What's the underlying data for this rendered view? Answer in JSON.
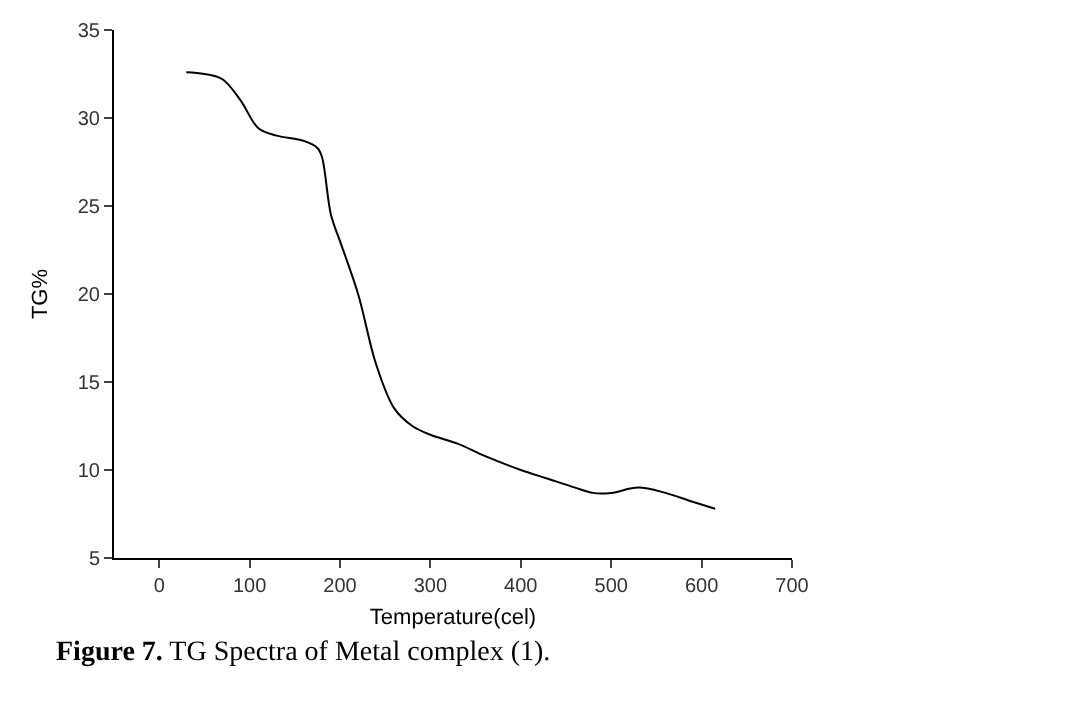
{
  "chart_data": {
    "type": "line",
    "xlabel": "Temperature(cel)",
    "ylabel": "TG%",
    "annotations": [
      "Figure 7. TG Spectra of Metal complex (1)."
    ],
    "x": [
      30,
      50,
      70,
      90,
      110,
      130,
      160,
      175,
      180,
      190,
      200,
      220,
      240,
      260,
      280,
      300,
      330,
      360,
      400,
      430,
      460,
      480,
      500,
      530,
      560,
      590,
      615
    ],
    "series": [
      {
        "color": "#000000",
        "values": [
          32.6,
          32.5,
          32.2,
          31.0,
          29.4,
          29.0,
          28.7,
          28.3,
          27.8,
          24.5,
          23,
          20,
          16,
          13.5,
          12.5,
          12,
          11.5,
          10.8,
          10,
          9.5,
          9.0,
          8.7,
          8.7,
          9.0,
          8.7,
          8.2,
          7.8
        ]
      }
    ],
    "xlim": [
      -50,
      700
    ],
    "xticks": [
      0,
      100,
      200,
      300,
      400,
      500,
      600,
      700
    ],
    "ylim": [
      5,
      35
    ],
    "yticks": [
      5,
      10,
      15,
      20,
      25,
      30,
      35
    ],
    "legend": false
  }
}
